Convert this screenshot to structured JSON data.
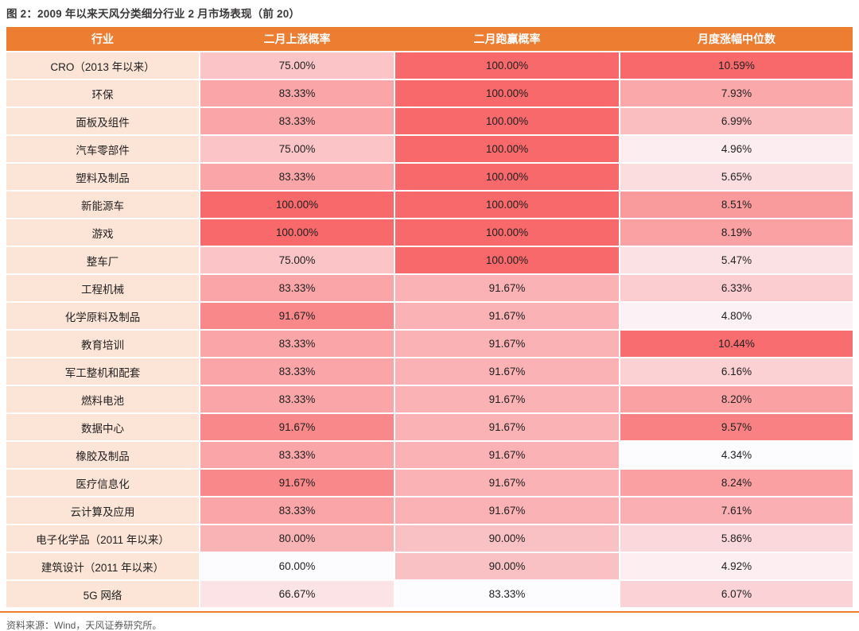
{
  "figure": {
    "title": "图 2：2009 年以来天风分类细分行业 2 月市场表现（前 20）",
    "source": "资料来源：Wind，天风证券研究所。"
  },
  "table": {
    "columns": [
      {
        "label": "行业"
      },
      {
        "label": "二月上涨概率"
      },
      {
        "label": "二月跑赢概率"
      },
      {
        "label": "月度涨幅中位数"
      }
    ],
    "value_format": "percent_2dp",
    "rows": [
      [
        "CRO（2013 年以来）",
        75.0,
        100.0,
        10.59
      ],
      [
        "环保",
        83.33,
        100.0,
        7.93
      ],
      [
        "面板及组件",
        83.33,
        100.0,
        6.99
      ],
      [
        "汽车零部件",
        75.0,
        100.0,
        4.96
      ],
      [
        "塑料及制品",
        83.33,
        100.0,
        5.65
      ],
      [
        "新能源车",
        100.0,
        100.0,
        8.51
      ],
      [
        "游戏",
        100.0,
        100.0,
        8.19
      ],
      [
        "整车厂",
        75.0,
        100.0,
        5.47
      ],
      [
        "工程机械",
        83.33,
        91.67,
        6.33
      ],
      [
        "化学原料及制品",
        91.67,
        91.67,
        4.8
      ],
      [
        "教育培训",
        83.33,
        91.67,
        10.44
      ],
      [
        "军工整机和配套",
        83.33,
        91.67,
        6.16
      ],
      [
        "燃料电池",
        83.33,
        91.67,
        8.2
      ],
      [
        "数据中心",
        91.67,
        91.67,
        9.57
      ],
      [
        "橡胶及制品",
        83.33,
        91.67,
        4.34
      ],
      [
        "医疗信息化",
        91.67,
        91.67,
        8.24
      ],
      [
        "云计算及应用",
        83.33,
        91.67,
        7.61
      ],
      [
        "电子化学品（2011 年以来）",
        80.0,
        90.0,
        5.86
      ],
      [
        "建筑设计（2011 年以来）",
        60.0,
        90.0,
        4.92
      ],
      [
        "5G 网络",
        66.67,
        83.33,
        6.07
      ]
    ]
  },
  "colors": {
    "header_bg": "#ED7D31",
    "header_text": "#FFFFFF",
    "industry_cell_bg": "#FCE4D6",
    "scale_min": "#FCFCFF",
    "scale_max": "#F8696B",
    "accent_line": "#ED7D31",
    "title_text": "#3B3838",
    "source_text": "#595959",
    "value_text": "#1F1F1F"
  }
}
